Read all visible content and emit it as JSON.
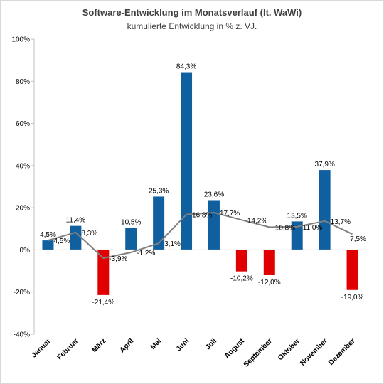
{
  "chart_data": {
    "type": "bar+line",
    "title": "Software-Entwicklung im Monatsverlauf (lt. WaWi)",
    "subtitle": "kumulierte Entwicklung in % z. VJ.",
    "categories": [
      "Januar",
      "Februar",
      "März",
      "April",
      "Mai",
      "Juni",
      "Juli",
      "August",
      "September",
      "Oktober",
      "November",
      "Dezember"
    ],
    "bar_values": [
      4.5,
      11.4,
      -21.4,
      10.5,
      25.3,
      84.3,
      23.6,
      -10.2,
      -12.0,
      13.5,
      37.9,
      -19.0
    ],
    "bar_labels": [
      "4,5%",
      "11,4%",
      "-21,4%",
      "10,5%",
      "25,3%",
      "84,3%",
      "23,6%",
      "-10,2%",
      "-12,0%",
      "13,5%",
      "37,9%",
      "-19,0%"
    ],
    "line_values": [
      4.5,
      8.3,
      -3.9,
      -1.2,
      3.1,
      16.8,
      17.7,
      14.2,
      10.8,
      11.0,
      13.7,
      7.5
    ],
    "line_labels": [
      "4,5%",
      "8,3%",
      "-3,9%",
      "-1,2%",
      "3,1%",
      "16,8%",
      "17,7%",
      "14,2%",
      "10,8%",
      "11,0%",
      "13,7%",
      "7,5%"
    ],
    "ylim": [
      -40,
      100
    ],
    "yticks": [
      -40,
      -20,
      0,
      20,
      40,
      60,
      80,
      100
    ],
    "ytick_labels": [
      "-40%",
      "-20%",
      "0%",
      "20%",
      "40%",
      "60%",
      "80%",
      "100%"
    ],
    "grid": false,
    "legend": "none",
    "colors": {
      "positive": "#1060a0",
      "negative": "#e00000",
      "line": "#808080",
      "axis": "#bfbfbf"
    }
  }
}
